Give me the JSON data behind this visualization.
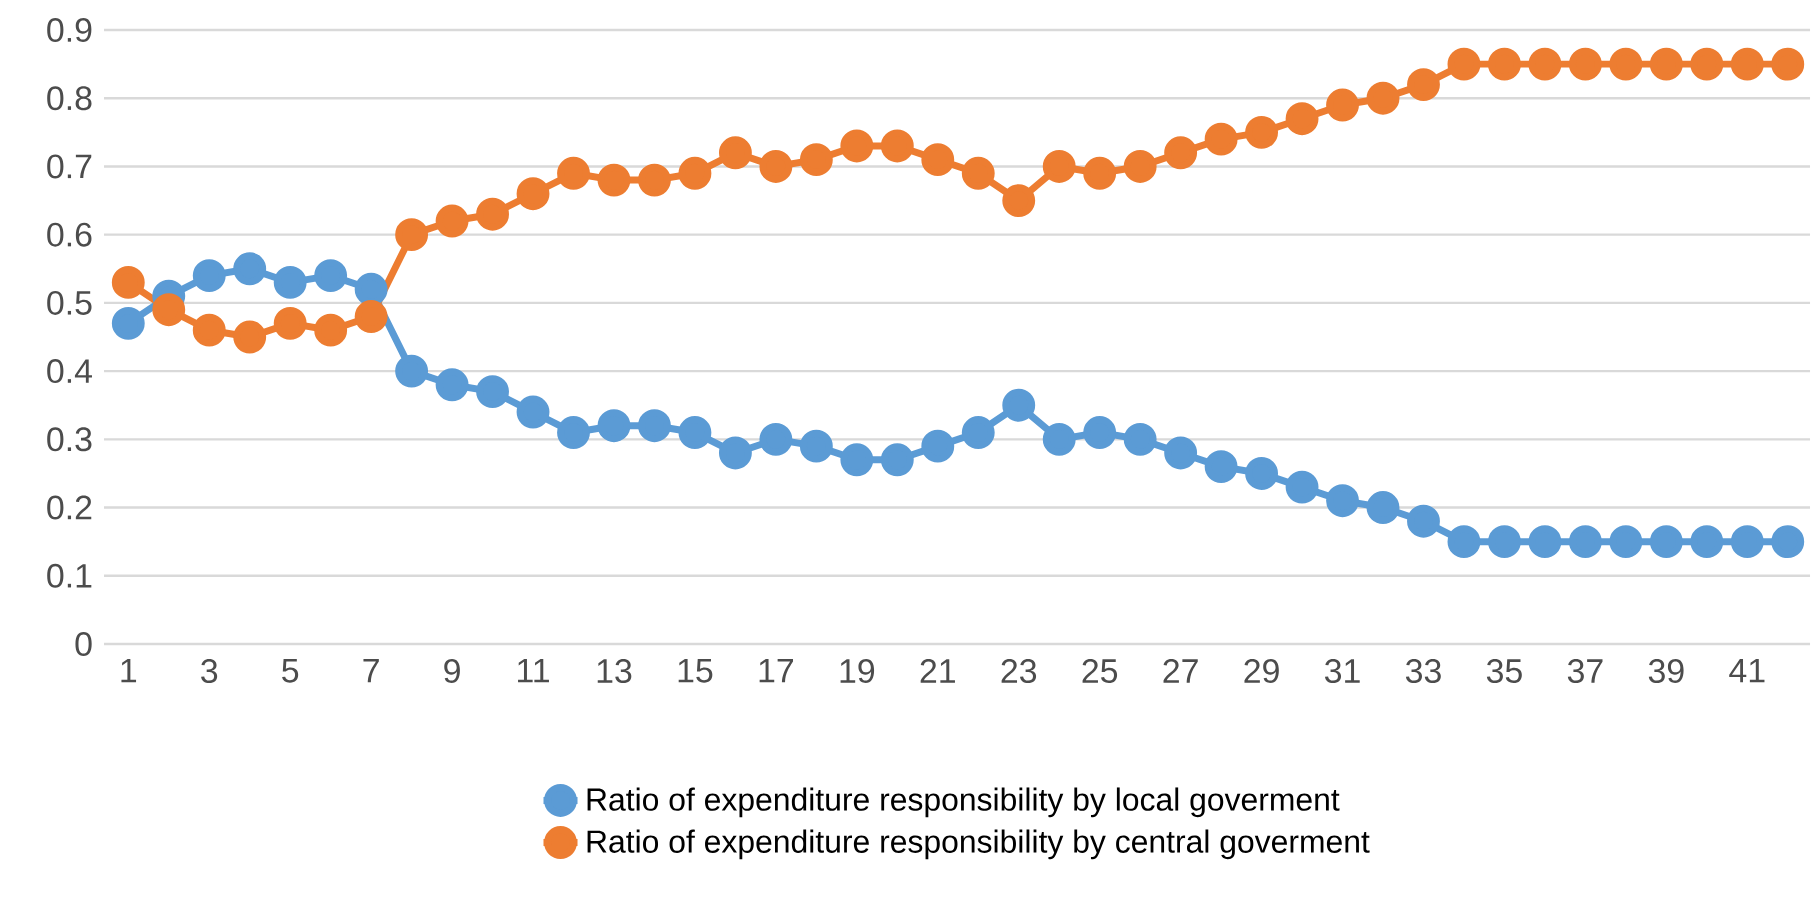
{
  "chart_data": {
    "type": "line",
    "categories": [
      "1",
      null,
      "3",
      null,
      "5",
      null,
      "7",
      null,
      "9",
      null,
      "11",
      null,
      "13",
      null,
      "15",
      null,
      "17",
      null,
      "19",
      null,
      "21",
      null,
      "23",
      null,
      "25",
      null,
      "27",
      null,
      "29",
      null,
      "31",
      null,
      "33",
      null,
      "35",
      null,
      "37",
      null,
      "39",
      null,
      "41",
      null
    ],
    "series": [
      {
        "name": "Ratio of expenditure responsibility by local goverment",
        "color": "#5b9bd5",
        "values": [
          0.47,
          0.51,
          0.54,
          0.55,
          0.53,
          0.54,
          0.52,
          0.4,
          0.38,
          0.37,
          0.34,
          0.31,
          0.32,
          0.32,
          0.31,
          0.28,
          0.3,
          0.29,
          0.27,
          0.27,
          0.29,
          0.31,
          0.35,
          0.3,
          0.31,
          0.3,
          0.28,
          0.26,
          0.25,
          0.23,
          0.21,
          0.2,
          0.18,
          0.15,
          0.15,
          0.15,
          0.15,
          0.15,
          0.15,
          0.15,
          0.15,
          0.15
        ]
      },
      {
        "name": "Ratio of expenditure responsibility by central goverment",
        "color": "#ed7d31",
        "values": [
          0.53,
          0.49,
          0.46,
          0.45,
          0.47,
          0.46,
          0.48,
          0.6,
          0.62,
          0.63,
          0.66,
          0.69,
          0.68,
          0.68,
          0.69,
          0.72,
          0.7,
          0.71,
          0.73,
          0.73,
          0.71,
          0.69,
          0.65,
          0.7,
          0.69,
          0.7,
          0.72,
          0.74,
          0.75,
          0.77,
          0.79,
          0.8,
          0.82,
          0.85,
          0.85,
          0.85,
          0.85,
          0.85,
          0.85,
          0.85,
          0.85,
          0.85
        ]
      }
    ],
    "ylim": [
      0,
      0.9
    ],
    "yticks": [
      0,
      0.1,
      0.2,
      0.3,
      0.4,
      0.5,
      0.6,
      0.7,
      0.8,
      0.9
    ],
    "grid": "y",
    "legend": "bottom",
    "marker": "circle",
    "line_style": "solid"
  }
}
